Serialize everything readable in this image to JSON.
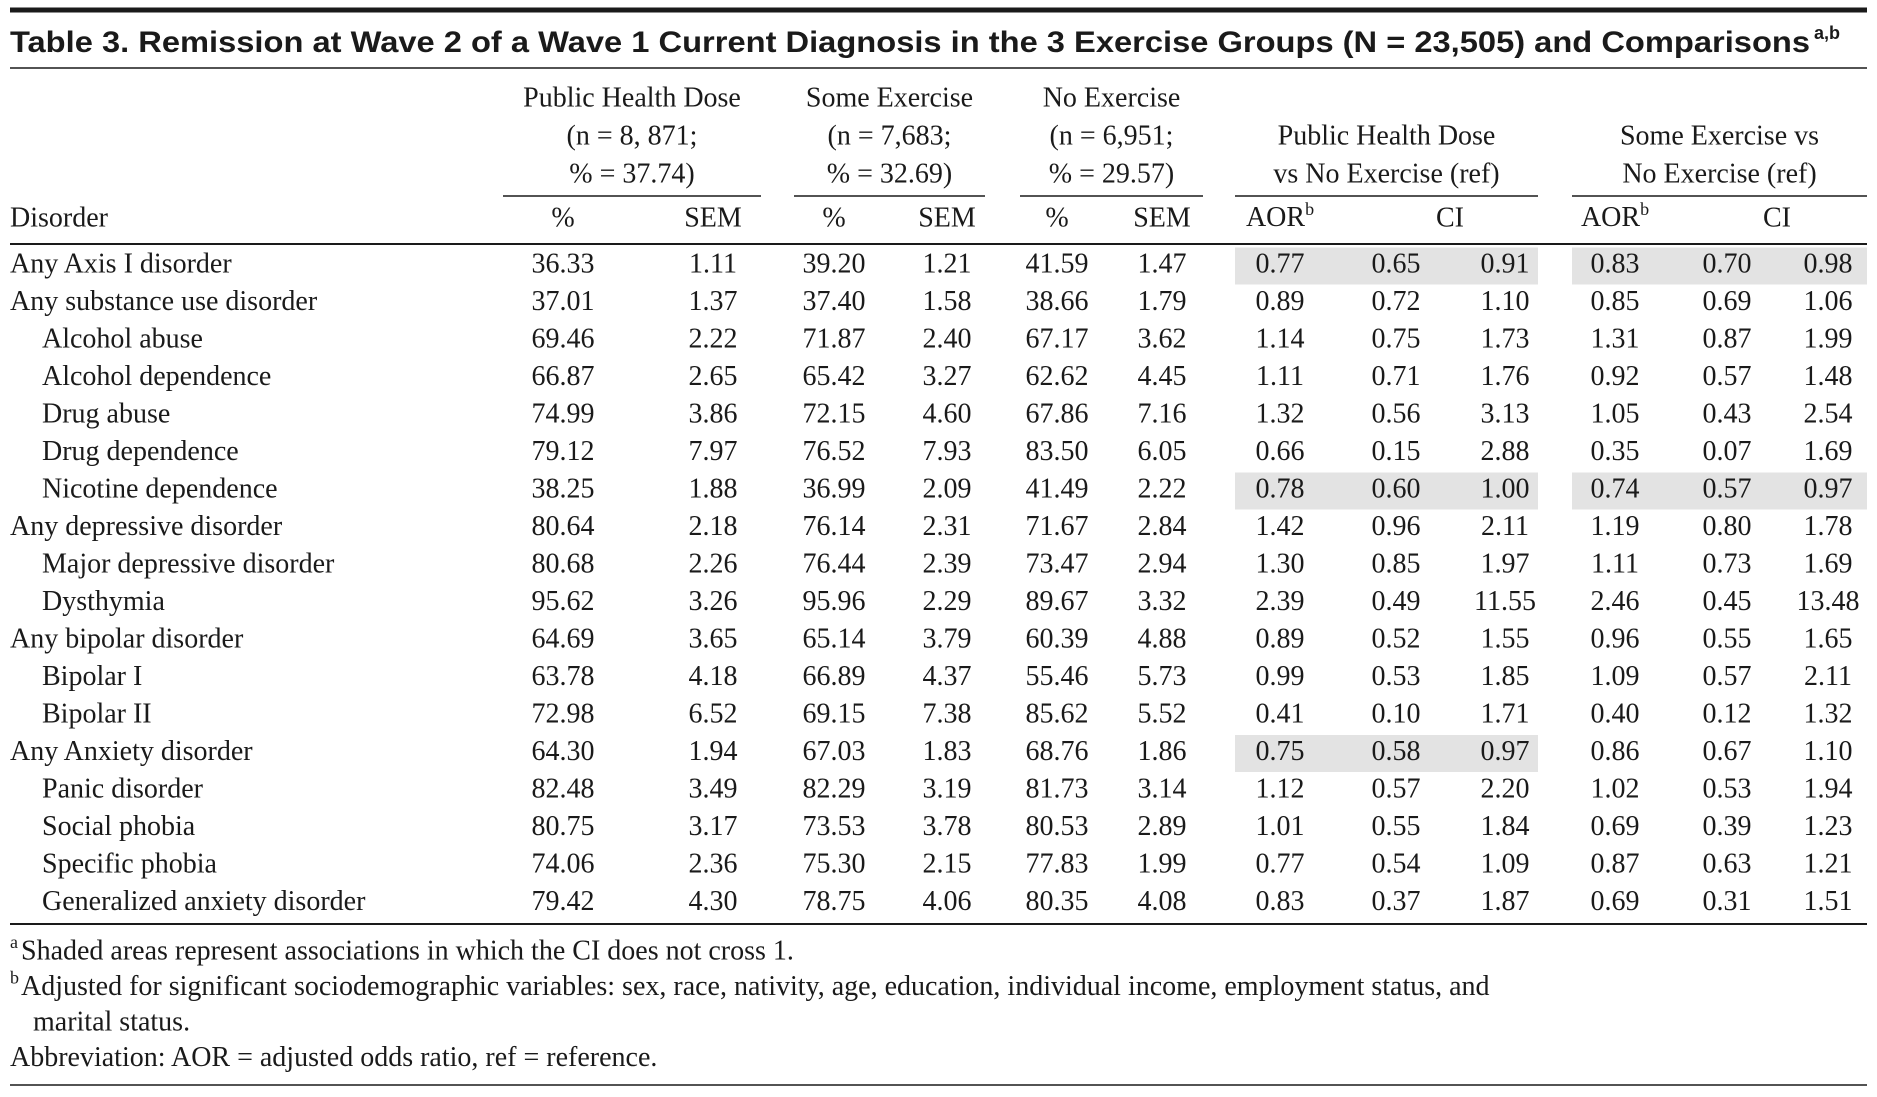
{
  "title": {
    "text": "Table 3. Remission at Wave 2 of a Wave 1 Current Diagnosis in the 3 Exercise Groups (N = 23,505) and Comparisons",
    "sup": "a,b"
  },
  "column_groups": [
    {
      "lines": [
        "Public Health Dose",
        "(n = 8, 871;",
        "% = 37.74)"
      ]
    },
    {
      "lines": [
        "Some Exercise",
        "(n = 7,683;",
        "% = 32.69)"
      ]
    },
    {
      "lines": [
        "No Exercise",
        "(n = 6,951;",
        "% = 29.57)"
      ]
    },
    {
      "lines": [
        "Public Health Dose",
        "vs No Exercise (ref)"
      ]
    },
    {
      "lines": [
        "Some Exercise vs",
        "No Exercise (ref)"
      ]
    }
  ],
  "header_row": [
    "Disorder",
    "%",
    "SEM",
    "%",
    "SEM",
    "%",
    "SEM",
    {
      "text": "AOR",
      "sup": "b"
    },
    "CI",
    {
      "text": "AOR",
      "sup": "b"
    },
    "CI"
  ],
  "rows": [
    {
      "label": "Any Axis I disorder",
      "indent": false,
      "cells": [
        "36.33",
        "1.11",
        "39.20",
        "1.21",
        "41.59",
        "1.47",
        "0.77",
        "0.65",
        "0.91",
        "0.83",
        "0.70",
        "0.98"
      ],
      "shaded": [
        true,
        true
      ]
    },
    {
      "label": "Any substance use disorder",
      "indent": false,
      "cells": [
        "37.01",
        "1.37",
        "37.40",
        "1.58",
        "38.66",
        "1.79",
        "0.89",
        "0.72",
        "1.10",
        "0.85",
        "0.69",
        "1.06"
      ],
      "shaded": [
        false,
        false
      ]
    },
    {
      "label": "Alcohol abuse",
      "indent": true,
      "cells": [
        "69.46",
        "2.22",
        "71.87",
        "2.40",
        "67.17",
        "3.62",
        "1.14",
        "0.75",
        "1.73",
        "1.31",
        "0.87",
        "1.99"
      ],
      "shaded": [
        false,
        false
      ]
    },
    {
      "label": "Alcohol dependence",
      "indent": true,
      "cells": [
        "66.87",
        "2.65",
        "65.42",
        "3.27",
        "62.62",
        "4.45",
        "1.11",
        "0.71",
        "1.76",
        "0.92",
        "0.57",
        "1.48"
      ],
      "shaded": [
        false,
        false
      ]
    },
    {
      "label": "Drug abuse",
      "indent": true,
      "cells": [
        "74.99",
        "3.86",
        "72.15",
        "4.60",
        "67.86",
        "7.16",
        "1.32",
        "0.56",
        "3.13",
        "1.05",
        "0.43",
        "2.54"
      ],
      "shaded": [
        false,
        false
      ]
    },
    {
      "label": "Drug dependence",
      "indent": true,
      "cells": [
        "79.12",
        "7.97",
        "76.52",
        "7.93",
        "83.50",
        "6.05",
        "0.66",
        "0.15",
        "2.88",
        "0.35",
        "0.07",
        "1.69"
      ],
      "shaded": [
        false,
        false
      ]
    },
    {
      "label": "Nicotine dependence",
      "indent": true,
      "cells": [
        "38.25",
        "1.88",
        "36.99",
        "2.09",
        "41.49",
        "2.22",
        "0.78",
        "0.60",
        "1.00",
        "0.74",
        "0.57",
        "0.97"
      ],
      "shaded": [
        true,
        true
      ]
    },
    {
      "label": "Any depressive disorder",
      "indent": false,
      "cells": [
        "80.64",
        "2.18",
        "76.14",
        "2.31",
        "71.67",
        "2.84",
        "1.42",
        "0.96",
        "2.11",
        "1.19",
        "0.80",
        "1.78"
      ],
      "shaded": [
        false,
        false
      ]
    },
    {
      "label": "Major depressive disorder",
      "indent": true,
      "cells": [
        "80.68",
        "2.26",
        "76.44",
        "2.39",
        "73.47",
        "2.94",
        "1.30",
        "0.85",
        "1.97",
        "1.11",
        "0.73",
        "1.69"
      ],
      "shaded": [
        false,
        false
      ]
    },
    {
      "label": "Dysthymia",
      "indent": true,
      "cells": [
        "95.62",
        "3.26",
        "95.96",
        "2.29",
        "89.67",
        "3.32",
        "2.39",
        "0.49",
        "11.55",
        "2.46",
        "0.45",
        "13.48"
      ],
      "shaded": [
        false,
        false
      ]
    },
    {
      "label": "Any bipolar disorder",
      "indent": false,
      "cells": [
        "64.69",
        "3.65",
        "65.14",
        "3.79",
        "60.39",
        "4.88",
        "0.89",
        "0.52",
        "1.55",
        "0.96",
        "0.55",
        "1.65"
      ],
      "shaded": [
        false,
        false
      ]
    },
    {
      "label": "Bipolar I",
      "indent": true,
      "cells": [
        "63.78",
        "4.18",
        "66.89",
        "4.37",
        "55.46",
        "5.73",
        "0.99",
        "0.53",
        "1.85",
        "1.09",
        "0.57",
        "2.11"
      ],
      "shaded": [
        false,
        false
      ]
    },
    {
      "label": "Bipolar II",
      "indent": true,
      "cells": [
        "72.98",
        "6.52",
        "69.15",
        "7.38",
        "85.62",
        "5.52",
        "0.41",
        "0.10",
        "1.71",
        "0.40",
        "0.12",
        "1.32"
      ],
      "shaded": [
        false,
        false
      ]
    },
    {
      "label": "Any Anxiety disorder",
      "indent": false,
      "cells": [
        "64.30",
        "1.94",
        "67.03",
        "1.83",
        "68.76",
        "1.86",
        "0.75",
        "0.58",
        "0.97",
        "0.86",
        "0.67",
        "1.10"
      ],
      "shaded": [
        true,
        false
      ]
    },
    {
      "label": "Panic disorder",
      "indent": true,
      "cells": [
        "82.48",
        "3.49",
        "82.29",
        "3.19",
        "81.73",
        "3.14",
        "1.12",
        "0.57",
        "2.20",
        "1.02",
        "0.53",
        "1.94"
      ],
      "shaded": [
        false,
        false
      ]
    },
    {
      "label": "Social phobia",
      "indent": true,
      "cells": [
        "80.75",
        "3.17",
        "73.53",
        "3.78",
        "80.53",
        "2.89",
        "1.01",
        "0.55",
        "1.84",
        "0.69",
        "0.39",
        "1.23"
      ],
      "shaded": [
        false,
        false
      ]
    },
    {
      "label": "Specific phobia",
      "indent": true,
      "cells": [
        "74.06",
        "2.36",
        "75.30",
        "2.15",
        "77.83",
        "1.99",
        "0.77",
        "0.54",
        "1.09",
        "0.87",
        "0.63",
        "1.21"
      ],
      "shaded": [
        false,
        false
      ]
    },
    {
      "label": "Generalized anxiety disorder",
      "indent": true,
      "cells": [
        "79.42",
        "4.30",
        "78.75",
        "4.06",
        "80.35",
        "4.08",
        "0.83",
        "0.37",
        "1.87",
        "0.69",
        "0.31",
        "1.51"
      ],
      "shaded": [
        false,
        false
      ]
    }
  ],
  "footnotes": [
    {
      "mark": "a",
      "lines": [
        "Shaded areas represent associations in which the CI does not cross 1."
      ]
    },
    {
      "mark": "b",
      "lines": [
        "Adjusted for significant sociodemographic variables: sex, race, nativity, age, education, individual income, employment status, and",
        "marital status."
      ]
    },
    {
      "lines": [
        "Abbreviation: AOR = adjusted odds ratio, ref = reference."
      ]
    }
  ]
}
